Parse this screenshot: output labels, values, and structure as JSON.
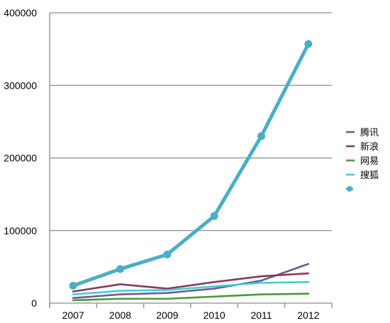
{
  "chart_data": {
    "type": "line",
    "categories": [
      "2007",
      "2008",
      "2009",
      "2010",
      "2011",
      "2012"
    ],
    "ylim": [
      0,
      400000
    ],
    "yticks": [
      0,
      100000,
      200000,
      300000,
      400000
    ],
    "ytick_labels": [
      "0",
      "100000",
      "200000",
      "300000",
      "400000"
    ],
    "grid": true,
    "legend_position": "right",
    "series": [
      {
        "name": "腾讯",
        "color": "#6b5b9a",
        "values": [
          7000,
          12000,
          14000,
          20000,
          31000,
          54000
        ]
      },
      {
        "name": "新浪",
        "color": "#8a3a5e",
        "values": [
          16000,
          26000,
          20000,
          29000,
          37000,
          41000
        ]
      },
      {
        "name": "网易",
        "color": "#4a9a3a",
        "values": [
          4000,
          6000,
          6000,
          9000,
          12000,
          13000
        ]
      },
      {
        "name": "搜狐",
        "color": "#46cdd0",
        "values": [
          12000,
          17000,
          18000,
          23000,
          28000,
          29000
        ]
      },
      {
        "name": "",
        "color": "#4aaec8",
        "markers": true,
        "values": [
          24000,
          47000,
          67000,
          120000,
          230000,
          357000
        ]
      }
    ]
  }
}
